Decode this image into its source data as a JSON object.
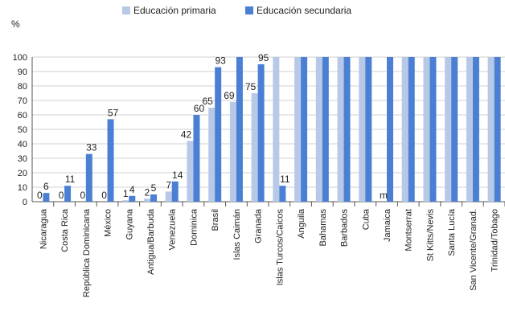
{
  "chart_data": {
    "type": "bar",
    "ylabel": "%",
    "ylim": [
      0,
      100
    ],
    "yticks": [
      0,
      10,
      20,
      30,
      40,
      50,
      60,
      70,
      80,
      90,
      100
    ],
    "grid": true,
    "legend_position": "top",
    "categories": [
      "Nicaragua",
      "Costa Rica",
      "República Dominicana",
      "México",
      "Guyana",
      "Antigua/Barbuda",
      "Venezuela",
      "Dominica",
      "Brasil",
      "Islas Caimán",
      "Granada",
      "Islas Turcos/Caicos",
      "Anguila",
      "Bahamas",
      "Barbados",
      "Cuba",
      "Jamaica",
      "Montserrat",
      "St Kitts/Nevis",
      "Santa Lucía",
      "San Vicente/Granad.",
      "Trinidad/Tobago"
    ],
    "series": [
      {
        "name": "Educación primaria",
        "color": "#b7c9e6",
        "values": [
          0,
          0,
          0,
          0,
          1,
          2,
          7,
          42,
          65,
          69,
          75,
          100,
          100,
          100,
          100,
          100,
          null,
          100,
          100,
          100,
          100,
          100
        ],
        "labels": [
          "0",
          "0",
          "0",
          "0",
          "1",
          "2",
          "7",
          "42",
          "65",
          "69",
          "75",
          "",
          "",
          "",
          "",
          "",
          "m",
          "",
          "",
          "",
          "",
          ""
        ]
      },
      {
        "name": "Educación secundaria",
        "color": "#4a7fd4",
        "values": [
          6,
          11,
          33,
          57,
          4,
          5,
          14,
          60,
          93,
          100,
          95,
          11,
          100,
          100,
          100,
          100,
          100,
          100,
          100,
          100,
          100,
          100
        ],
        "labels": [
          "6",
          "11",
          "33",
          "57",
          "4",
          "5",
          "14",
          "60",
          "93",
          "",
          "95",
          "11",
          "",
          "",
          "",
          "",
          "",
          "",
          "",
          "",
          "",
          ""
        ]
      }
    ]
  }
}
